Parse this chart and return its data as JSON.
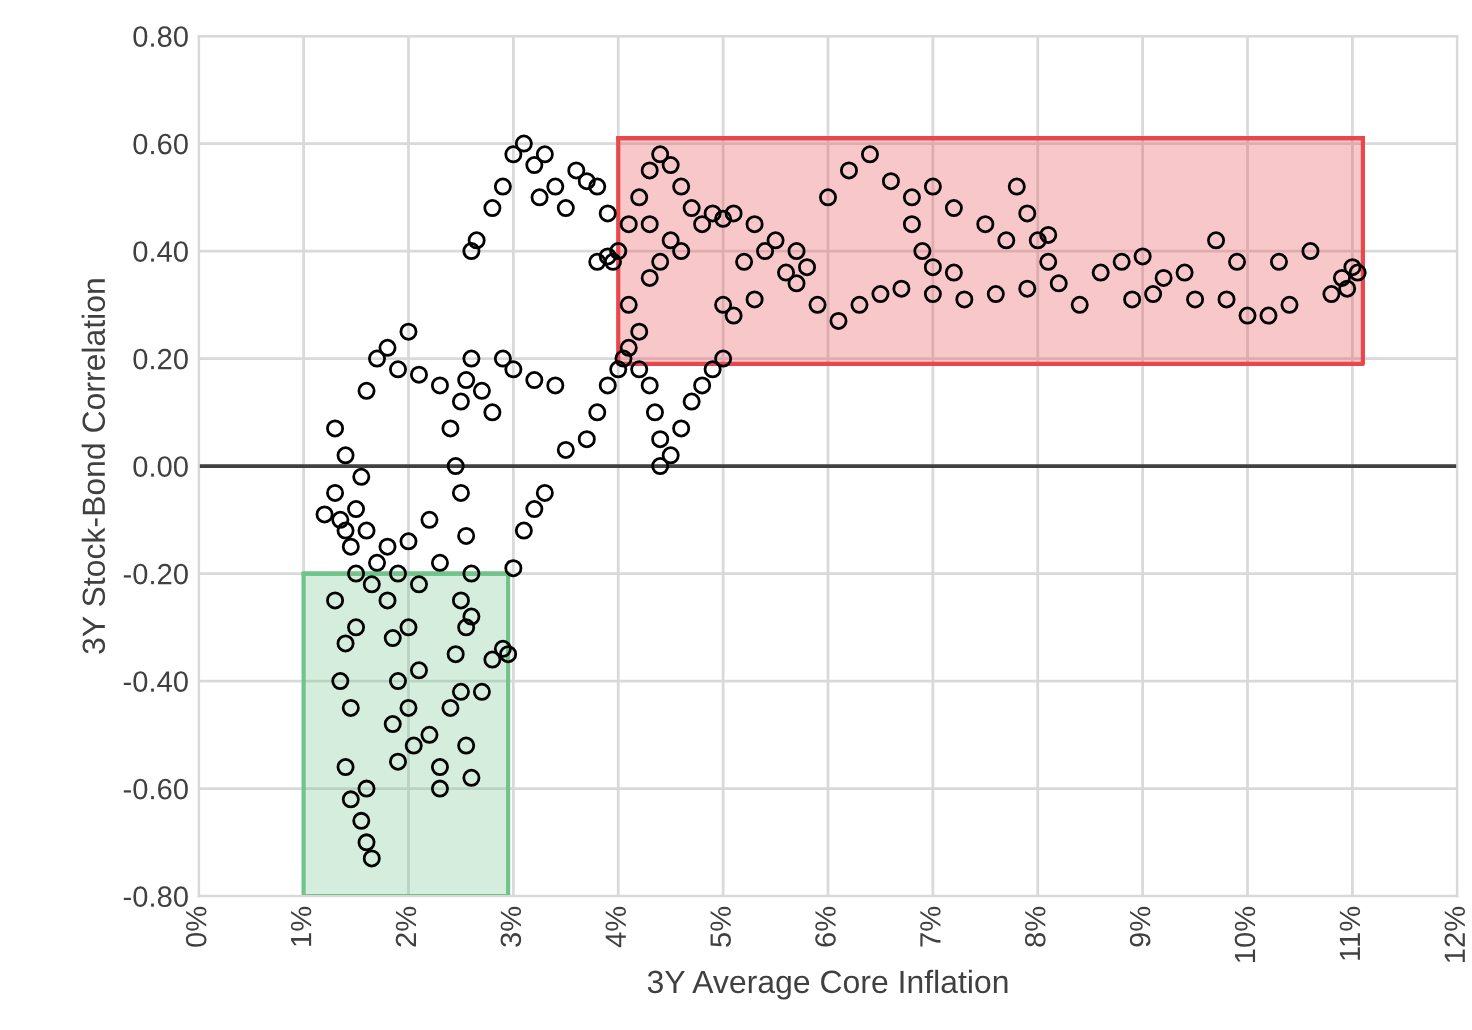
{
  "chart_data": {
    "type": "scatter",
    "xlabel": "3Y Average Core Inflation",
    "ylabel": "3Y Stock-Bond Correlation",
    "x": [
      1.3,
      1.35,
      1.4,
      1.5,
      1.45,
      1.6,
      1.7,
      1.5,
      1.8,
      1.9,
      1.4,
      1.3,
      1.55,
      1.2,
      1.65,
      2.0,
      2.2,
      2.3,
      2.1,
      2.5,
      2.55,
      2.6,
      1.3,
      1.4,
      1.35,
      1.5,
      1.45,
      1.4,
      1.45,
      1.55,
      1.6,
      1.65,
      1.6,
      1.8,
      1.85,
      1.9,
      1.85,
      1.9,
      2.0,
      2.0,
      2.05,
      2.1,
      2.2,
      2.3,
      2.4,
      2.45,
      2.5,
      2.5,
      2.55,
      2.6,
      2.55,
      2.7,
      2.8,
      2.9,
      2.95,
      2.3,
      2.6,
      1.6,
      1.7,
      1.8,
      1.9,
      2.0,
      2.1,
      2.3,
      2.4,
      2.45,
      2.5,
      2.55,
      2.6,
      2.7,
      2.8,
      2.9,
      3.0,
      3.2,
      3.4,
      2.6,
      2.65,
      2.8,
      2.9,
      3.0,
      3.1,
      3.2,
      3.3,
      3.4,
      3.5,
      3.6,
      3.7,
      3.8,
      3.9,
      3.95,
      3.25,
      3.0,
      3.1,
      3.2,
      3.3,
      3.5,
      3.7,
      3.8,
      3.9,
      4.0,
      4.05,
      4.1,
      4.2,
      4.3,
      4.35,
      4.4,
      4.4,
      4.5,
      4.6,
      4.7,
      4.8,
      4.9,
      5.0,
      3.8,
      3.9,
      4.0,
      4.1,
      4.2,
      4.3,
      4.4,
      4.5,
      4.6,
      4.7,
      4.8,
      4.5,
      4.4,
      4.3,
      4.6,
      4.9,
      5.0,
      4.2,
      4.1,
      4.3,
      5.1,
      5.3,
      5.5,
      5.7,
      5.8,
      5.2,
      5.4,
      5.6,
      5.3,
      5.1,
      5.0,
      5.7,
      5.9,
      6.1,
      6.3,
      6.5,
      6.7,
      6.0,
      6.2,
      6.4,
      6.6,
      6.8,
      7.0,
      7.2,
      6.8,
      6.9,
      7.0,
      7.2,
      7.0,
      7.3,
      7.6,
      7.9,
      7.5,
      7.7,
      7.8,
      8.0,
      8.1,
      8.2,
      8.4,
      8.1,
      7.9,
      8.6,
      8.8,
      9.0,
      9.2,
      9.4,
      9.7,
      9.9,
      9.5,
      9.8,
      10.0,
      10.2,
      10.4,
      10.3,
      10.6,
      10.8,
      10.9,
      11.0,
      10.95,
      11.05,
      8.9,
      9.1
    ],
    "values": [
      -0.05,
      -0.1,
      -0.12,
      -0.08,
      -0.15,
      -0.12,
      -0.18,
      -0.2,
      -0.15,
      -0.2,
      0.02,
      0.07,
      -0.02,
      -0.09,
      -0.22,
      -0.14,
      -0.1,
      -0.18,
      -0.22,
      -0.05,
      -0.13,
      -0.2,
      -0.25,
      -0.33,
      -0.4,
      -0.3,
      -0.45,
      -0.56,
      -0.62,
      -0.66,
      -0.7,
      -0.73,
      -0.6,
      -0.25,
      -0.32,
      -0.4,
      -0.48,
      -0.55,
      -0.3,
      -0.45,
      -0.52,
      -0.38,
      -0.5,
      -0.56,
      -0.45,
      -0.35,
      -0.25,
      -0.42,
      -0.52,
      -0.58,
      -0.3,
      -0.42,
      -0.36,
      -0.34,
      -0.35,
      -0.6,
      -0.28,
      0.14,
      0.2,
      0.22,
      0.18,
      0.25,
      0.17,
      0.15,
      0.07,
      0.0,
      0.12,
      0.16,
      0.2,
      0.14,
      0.1,
      0.2,
      0.18,
      0.16,
      0.15,
      0.4,
      0.42,
      0.48,
      0.52,
      0.58,
      0.6,
      0.56,
      0.58,
      0.52,
      0.48,
      0.55,
      0.53,
      0.52,
      0.47,
      0.38,
      0.5,
      -0.19,
      -0.12,
      -0.08,
      -0.05,
      0.03,
      0.05,
      0.1,
      0.15,
      0.18,
      0.2,
      0.22,
      0.18,
      0.15,
      0.1,
      0.05,
      0.0,
      0.02,
      0.07,
      0.12,
      0.15,
      0.18,
      0.2,
      0.38,
      0.39,
      0.4,
      0.45,
      0.5,
      0.55,
      0.58,
      0.56,
      0.52,
      0.48,
      0.45,
      0.42,
      0.38,
      0.35,
      0.4,
      0.47,
      0.46,
      0.25,
      0.3,
      0.45,
      0.47,
      0.45,
      0.42,
      0.4,
      0.37,
      0.38,
      0.4,
      0.36,
      0.31,
      0.28,
      0.3,
      0.34,
      0.3,
      0.27,
      0.3,
      0.32,
      0.33,
      0.5,
      0.55,
      0.58,
      0.53,
      0.5,
      0.52,
      0.48,
      0.45,
      0.4,
      0.37,
      0.36,
      0.32,
      0.31,
      0.32,
      0.33,
      0.45,
      0.42,
      0.52,
      0.42,
      0.38,
      0.34,
      0.3,
      0.43,
      0.47,
      0.36,
      0.38,
      0.39,
      0.35,
      0.36,
      0.42,
      0.38,
      0.31,
      0.31,
      0.28,
      0.28,
      0.3,
      0.38,
      0.4,
      0.32,
      0.35,
      0.37,
      0.33,
      0.36,
      0.31,
      0.32
    ],
    "color": "#000000",
    "marker": "circle",
    "xlim": [
      0,
      12
    ],
    "xticks": [
      {
        "value": 0,
        "label": "0%"
      },
      {
        "value": 1,
        "label": "1%"
      },
      {
        "value": 2,
        "label": "2%"
      },
      {
        "value": 3,
        "label": "3%"
      },
      {
        "value": 4,
        "label": "4%"
      },
      {
        "value": 5,
        "label": "5%"
      },
      {
        "value": 6,
        "label": "6%"
      },
      {
        "value": 7,
        "label": "7%"
      },
      {
        "value": 8,
        "label": "8%"
      },
      {
        "value": 9,
        "label": "9%"
      },
      {
        "value": 10,
        "label": "10%"
      },
      {
        "value": 11,
        "label": "11%"
      },
      {
        "value": 12,
        "label": "12%"
      }
    ],
    "ylim": [
      -0.8,
      0.8
    ],
    "yticks": [
      {
        "value": -0.8,
        "label": "-0.80"
      },
      {
        "value": -0.6,
        "label": "-0.60"
      },
      {
        "value": -0.4,
        "label": "-0.40"
      },
      {
        "value": -0.2,
        "label": "-0.20"
      },
      {
        "value": 0,
        "label": "0.00"
      },
      {
        "value": 0.2,
        "label": "0.20"
      },
      {
        "value": 0.4,
        "label": "0.40"
      },
      {
        "value": 0.6,
        "label": "0.60"
      },
      {
        "value": 0.8,
        "label": "0.80"
      }
    ],
    "grid": true,
    "ref_lines": [
      {
        "axis": "y",
        "value": 0,
        "color": "#404040"
      }
    ],
    "series": [
      {
        "type": "line",
        "x": [
          1.0,
          2.95
        ],
        "values": [
          -0.2,
          -0.2
        ],
        "lower": [
          -0.8,
          -0.8
        ],
        "upper": [
          -0.2,
          -0.2
        ],
        "color": "#70c48a",
        "marker": "none"
      },
      {
        "type": "line",
        "x": [
          4.0,
          11.1
        ],
        "values": [
          0.61,
          0.61
        ],
        "lower": [
          0.19,
          0.19
        ],
        "upper": [
          0.61,
          0.61
        ],
        "color": "#e8474c",
        "marker": "none"
      }
    ]
  }
}
